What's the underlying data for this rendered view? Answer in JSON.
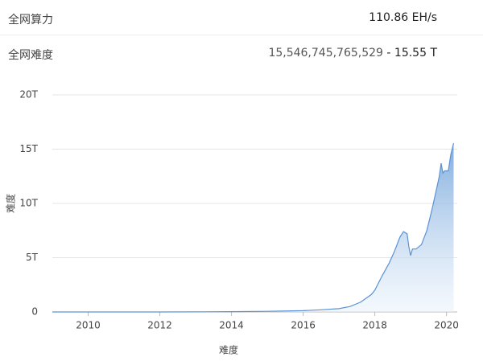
{
  "stats": [
    {
      "label": "全网算力",
      "value": "110.86 EH/s"
    },
    {
      "label": "全网难度",
      "value": "15,546,745,765,529",
      "short": "- 15.55 T"
    }
  ],
  "chart_data": {
    "type": "area",
    "y_label": "难度",
    "x_label": "难度",
    "color": "#5b93d3",
    "x": [
      2009.0,
      2011.0,
      2012.0,
      2013.0,
      2014.0,
      2015.0,
      2016.0,
      2016.5,
      2017.0,
      2017.3,
      2017.6,
      2017.9,
      2018.0,
      2018.2,
      2018.4,
      2018.55,
      2018.7,
      2018.8,
      2018.9,
      2018.95,
      2019.0,
      2019.05,
      2019.15,
      2019.3,
      2019.45,
      2019.6,
      2019.7,
      2019.8,
      2019.85,
      2019.9,
      2019.95,
      2020.05,
      2020.12,
      2020.2
    ],
    "values": [
      0,
      0.001,
      0.002,
      0.01,
      0.03,
      0.06,
      0.12,
      0.2,
      0.3,
      0.5,
      0.9,
      1.6,
      2.0,
      3.3,
      4.5,
      5.6,
      6.9,
      7.4,
      7.2,
      6.0,
      5.2,
      5.8,
      5.8,
      6.2,
      7.5,
      9.5,
      11.0,
      12.5,
      13.7,
      12.8,
      13.0,
      13.0,
      14.5,
      15.55
    ],
    "xlim": [
      2009.0,
      2020.3
    ],
    "xticks": [
      2010,
      2012,
      2014,
      2016,
      2018,
      2020
    ],
    "ylim": [
      0,
      20
    ],
    "yticks": [
      0,
      {
        "value": 5,
        "label": "5T"
      },
      {
        "value": 10,
        "label": "10T"
      },
      {
        "value": 15,
        "label": "15T"
      },
      {
        "value": 20,
        "label": "20T"
      }
    ],
    "grid": true
  }
}
